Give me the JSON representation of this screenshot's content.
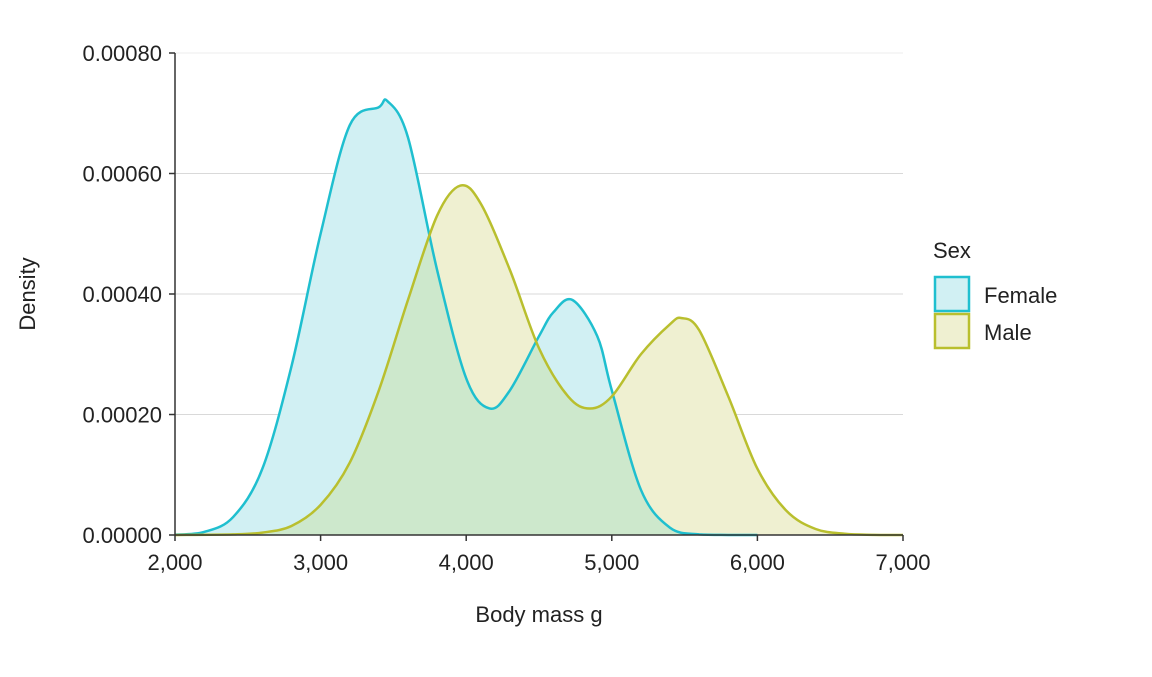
{
  "chart_data": {
    "type": "area",
    "title": "",
    "xlabel": "Body mass g",
    "ylabel": "Density",
    "xlim": [
      2000,
      7000
    ],
    "ylim": [
      0,
      0.0008
    ],
    "x_ticks": [
      2000,
      3000,
      4000,
      5000,
      6000,
      7000
    ],
    "x_tick_labels": [
      "2,000",
      "3,000",
      "4,000",
      "5,000",
      "6,000",
      "7,000"
    ],
    "y_ticks": [
      0,
      0.0002,
      0.0004,
      0.0006,
      0.0008
    ],
    "y_tick_labels": [
      "0.00000",
      "0.00020",
      "0.00040",
      "0.00060",
      "0.00080"
    ],
    "grid": "horizontal",
    "legend": {
      "title": "Sex",
      "position": "right"
    },
    "series": [
      {
        "name": "Female",
        "color": "#1fbfcf",
        "fill": "#d1f0f3",
        "x": [
          2000,
          2200,
          2400,
          2600,
          2800,
          3000,
          3200,
          3400,
          3460,
          3600,
          3800,
          4000,
          4160,
          4300,
          4500,
          4600,
          4730,
          4900,
          5000,
          5200,
          5400,
          5600,
          5800,
          6000
        ],
        "y": [
          5e-07,
          5e-06,
          3e-05,
          0.00011,
          0.00028,
          0.0005,
          0.00068,
          0.00071,
          0.00072,
          0.00066,
          0.00044,
          0.00026,
          0.00021,
          0.00024,
          0.00033,
          0.00037,
          0.00039,
          0.00033,
          0.00024,
          7.5e-05,
          1.2e-05,
          1e-06,
          1e-07,
          0
        ]
      },
      {
        "name": "Male",
        "color": "#b9bf2e",
        "fill": "#eff0d1",
        "x": [
          2000,
          2400,
          2600,
          2800,
          3000,
          3200,
          3400,
          3600,
          3800,
          3960,
          4100,
          4300,
          4500,
          4700,
          4850,
          5000,
          5200,
          5400,
          5480,
          5600,
          5800,
          6000,
          6200,
          6400,
          6600,
          6800,
          7000
        ],
        "y": [
          0,
          1e-06,
          4e-06,
          1.5e-05,
          5e-05,
          0.00012,
          0.00024,
          0.00039,
          0.00053,
          0.00058,
          0.00055,
          0.00044,
          0.00031,
          0.00023,
          0.00021,
          0.00023,
          0.0003,
          0.00035,
          0.00036,
          0.00034,
          0.00023,
          0.00011,
          4e-05,
          1e-05,
          2e-06,
          3e-07,
          0
        ]
      }
    ],
    "overlap_fill": "#cde8cc"
  }
}
